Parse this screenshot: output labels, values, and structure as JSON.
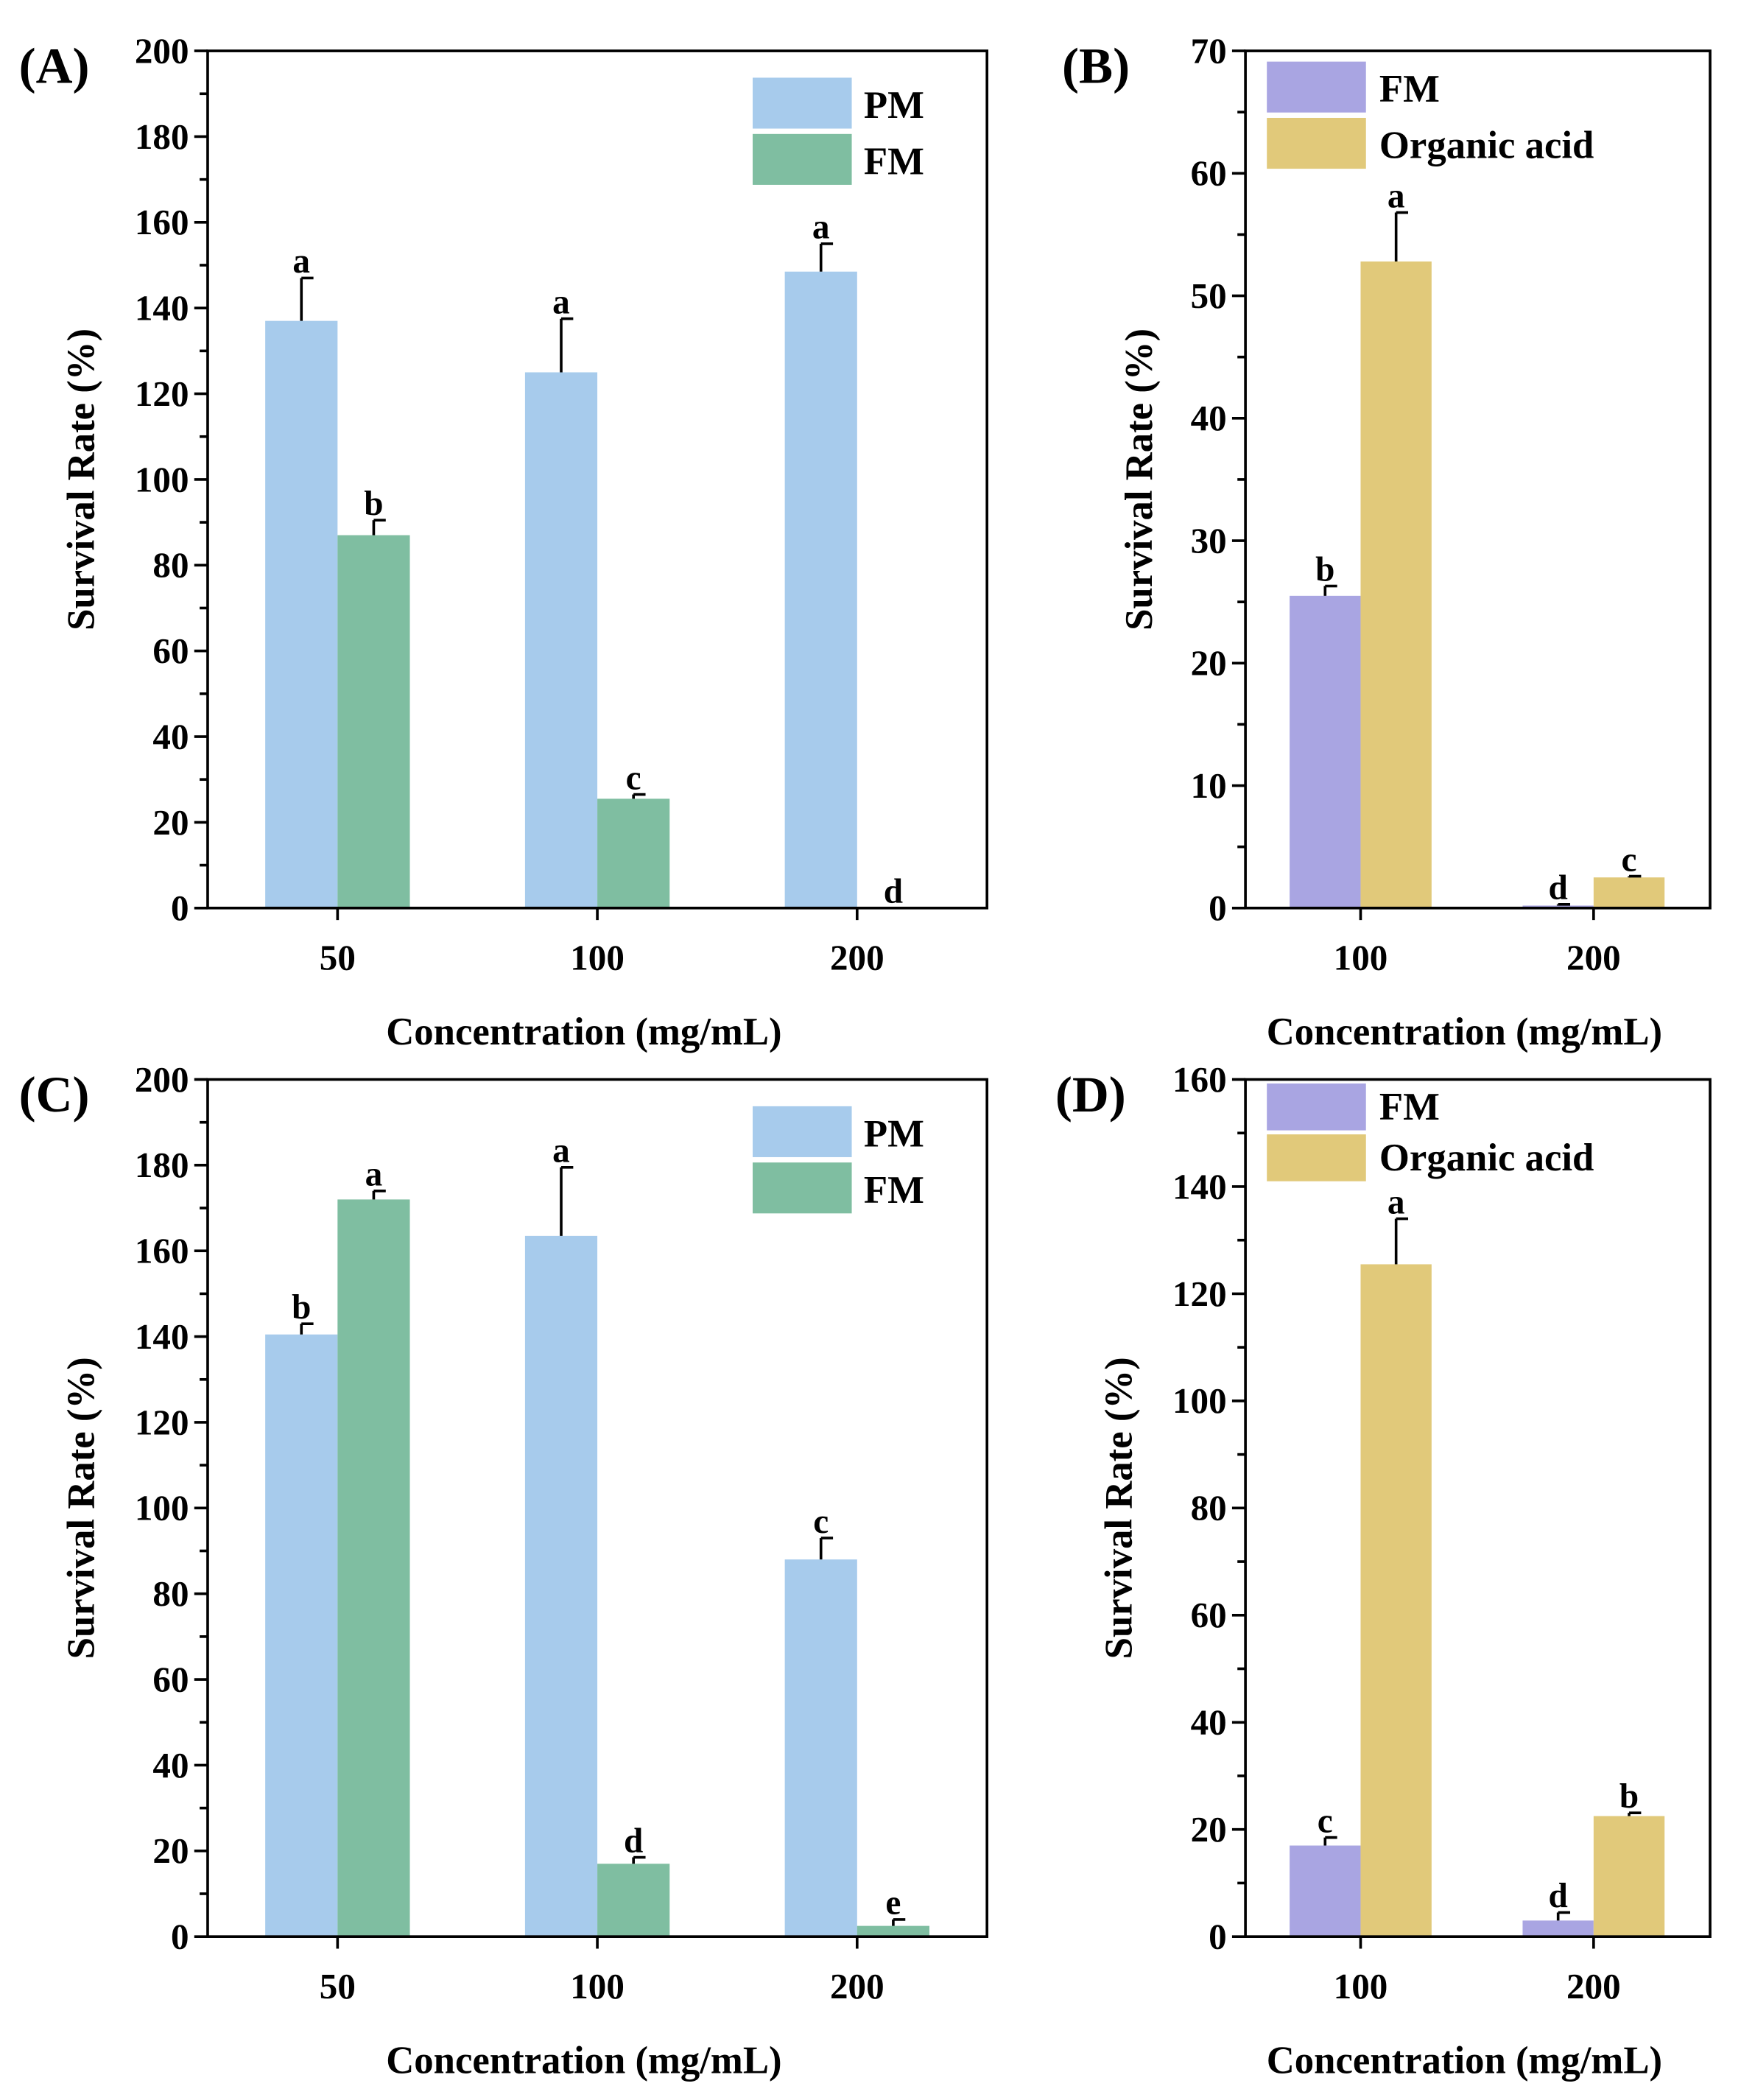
{
  "chart_data": [
    {
      "type": "bar",
      "panel_label": "(A)",
      "categories": [
        "50",
        "100",
        "200"
      ],
      "xlabel": "Concentration (mg/mL)",
      "ylabel": "Survival Rate (%)",
      "ylim": [
        0,
        200
      ],
      "yticks": [
        0,
        20,
        40,
        60,
        80,
        100,
        120,
        140,
        160,
        180,
        200
      ],
      "legend_position": "top-right",
      "series": [
        {
          "name": "PM",
          "color": "#a7cbec",
          "values": [
            137,
            125,
            148.5
          ],
          "errors": [
            10,
            12.5,
            6.5
          ],
          "letters": [
            "a",
            "a",
            "a"
          ]
        },
        {
          "name": "FM",
          "color": "#7fbea1",
          "values": [
            87,
            25.5,
            0
          ],
          "errors": [
            3.5,
            1,
            0
          ],
          "letters": [
            "b",
            "c",
            "d"
          ]
        }
      ]
    },
    {
      "type": "bar",
      "panel_label": "(B)",
      "categories": [
        "100",
        "200"
      ],
      "xlabel": "Concentration (mg/mL)",
      "ylabel": "Survival Rate (%)",
      "ylim": [
        0,
        70
      ],
      "yticks": [
        0,
        10,
        20,
        30,
        40,
        50,
        60,
        70
      ],
      "legend_position": "top-left",
      "series": [
        {
          "name": "FM",
          "color": "#a9a5e2",
          "values": [
            25.5,
            0.2
          ],
          "errors": [
            0.8,
            0.1
          ],
          "letters": [
            "b",
            "d"
          ]
        },
        {
          "name": "Organic acid",
          "color": "#e1c97a",
          "values": [
            52.8,
            2.5
          ],
          "errors": [
            4,
            0.1
          ],
          "letters": [
            "a",
            "c"
          ]
        }
      ]
    },
    {
      "type": "bar",
      "panel_label": "(C)",
      "categories": [
        "50",
        "100",
        "200"
      ],
      "xlabel": "Concentration (mg/mL)",
      "ylabel": "Survival Rate (%)",
      "ylim": [
        0,
        200
      ],
      "yticks": [
        0,
        20,
        40,
        60,
        80,
        100,
        120,
        140,
        160,
        180,
        200
      ],
      "legend_position": "top-right",
      "series": [
        {
          "name": "PM",
          "color": "#a7cbec",
          "values": [
            140.5,
            163.5,
            88
          ],
          "errors": [
            2.5,
            16,
            5
          ],
          "letters": [
            "b",
            "a",
            "c"
          ]
        },
        {
          "name": "FM",
          "color": "#7fbea1",
          "values": [
            172,
            17,
            2.5
          ],
          "errors": [
            2,
            1.5,
            1.5
          ],
          "letters": [
            "a",
            "d",
            "e"
          ]
        }
      ]
    },
    {
      "type": "bar",
      "panel_label": "(D)",
      "categories": [
        "100",
        "200"
      ],
      "xlabel": "Concentration (mg/mL)",
      "ylabel": "Survival Rate (%)",
      "ylim": [
        0,
        160
      ],
      "yticks": [
        0,
        20,
        40,
        60,
        80,
        100,
        120,
        140,
        160
      ],
      "legend_position": "top-left",
      "series": [
        {
          "name": "FM",
          "color": "#a9a5e2",
          "values": [
            17,
            3
          ],
          "errors": [
            1.5,
            1.5
          ],
          "letters": [
            "c",
            "d"
          ]
        },
        {
          "name": "Organic acid",
          "color": "#e1c97a",
          "values": [
            125.5,
            22.5
          ],
          "errors": [
            8.5,
            0.6
          ],
          "letters": [
            "a",
            "b"
          ]
        }
      ]
    }
  ]
}
